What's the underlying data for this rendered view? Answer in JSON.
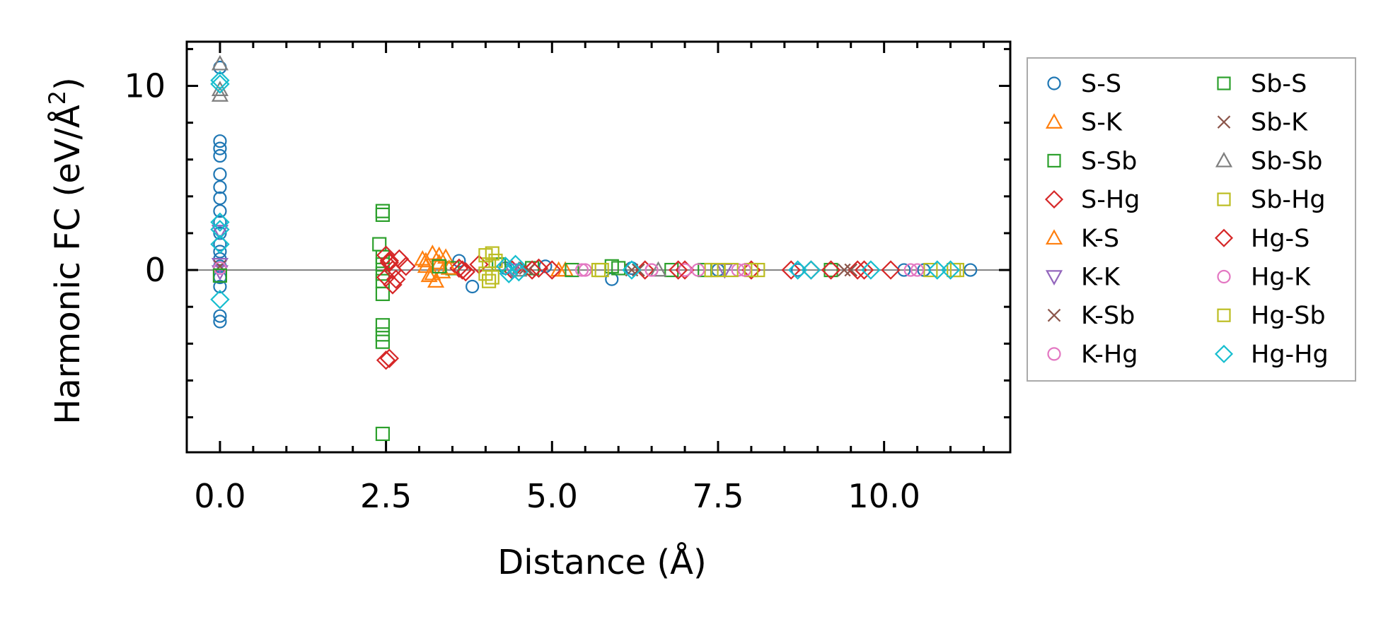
{
  "chart_data": {
    "type": "scatter",
    "title": "",
    "xlabel": "Distance (Å)",
    "ylabel": "Harmonic FC (eV/Å²)",
    "ylabel_base": "Harmonic FC (eV/Å",
    "ylabel_sup": "2",
    "ylabel_end": ")",
    "xlim": [
      -0.5,
      11.9
    ],
    "ylim": [
      -9.9,
      12.4
    ],
    "x_ticks": [
      {
        "value": 0.0,
        "label": "0.0"
      },
      {
        "value": 2.5,
        "label": "2.5"
      },
      {
        "value": 5.0,
        "label": "5.0"
      },
      {
        "value": 7.5,
        "label": "7.5"
      },
      {
        "value": 10.0,
        "label": "10.0"
      }
    ],
    "y_ticks": [
      {
        "value": 0,
        "label": "0"
      },
      {
        "value": 10,
        "label": "10"
      }
    ],
    "reference_line_y": 0,
    "legend_position": "outside-right",
    "series": [
      {
        "name": "S-S",
        "marker": "circle",
        "color": "#1f77b4",
        "filled": false,
        "points": [
          [
            0,
            11
          ],
          [
            0,
            7
          ],
          [
            0,
            6.6
          ],
          [
            0,
            6.2
          ],
          [
            0,
            5.2
          ],
          [
            0,
            4.5
          ],
          [
            0,
            3.9
          ],
          [
            0,
            3.2
          ],
          [
            0,
            2.6
          ],
          [
            0,
            2
          ],
          [
            0,
            1.4
          ],
          [
            0,
            1
          ],
          [
            0,
            0.6
          ],
          [
            0,
            0.2
          ],
          [
            0,
            -0.4
          ],
          [
            0,
            -0.9
          ],
          [
            0,
            -2.5
          ],
          [
            0,
            -2.8
          ],
          [
            3.6,
            0.5
          ],
          [
            3.8,
            -0.9
          ],
          [
            4.3,
            0.1
          ],
          [
            4.9,
            0.2
          ],
          [
            5.9,
            -0.5
          ],
          [
            6.2,
            0.1
          ],
          [
            7.5,
            0
          ],
          [
            8.7,
            0
          ],
          [
            10.3,
            0
          ],
          [
            10.6,
            0
          ],
          [
            11.3,
            0
          ]
        ]
      },
      {
        "name": "S-K",
        "marker": "triangle-up",
        "color": "#ff7f0e",
        "filled": false,
        "points": [
          [
            3.05,
            0.6
          ],
          [
            3.1,
            0.2
          ],
          [
            3.15,
            -0.3
          ],
          [
            3.2,
            0.9
          ],
          [
            3.25,
            -0.6
          ],
          [
            3.3,
            0.4
          ],
          [
            3.35,
            -0.1
          ],
          [
            3.4,
            0.7
          ],
          [
            5.1,
            0
          ]
        ]
      },
      {
        "name": "S-Sb",
        "marker": "square",
        "color": "#2ca02c",
        "filled": false,
        "points": [
          [
            2.45,
            3.2
          ],
          [
            2.45,
            3.0
          ],
          [
            2.4,
            1.4
          ],
          [
            2.45,
            0.7
          ],
          [
            2.45,
            0.3
          ],
          [
            2.45,
            -0.2
          ],
          [
            2.45,
            -0.6
          ],
          [
            2.45,
            -1.3
          ],
          [
            2.45,
            -3
          ],
          [
            2.45,
            -3.5
          ],
          [
            2.45,
            -3.9
          ],
          [
            2.45,
            -8.9
          ],
          [
            3.5,
            0.1
          ],
          [
            4.7,
            0.1
          ],
          [
            5.9,
            0.2
          ],
          [
            6.8,
            0
          ],
          [
            9.2,
            0
          ]
        ]
      },
      {
        "name": "S-Hg",
        "marker": "diamond",
        "color": "#d62728",
        "filled": false,
        "points": [
          [
            2.5,
            0.8
          ],
          [
            2.55,
            0.4
          ],
          [
            2.6,
            0
          ],
          [
            2.5,
            -0.4
          ],
          [
            2.6,
            -0.8
          ],
          [
            2.7,
            0.6
          ],
          [
            2.8,
            0.2
          ],
          [
            2.5,
            -4.9
          ],
          [
            2.55,
            -4.8
          ],
          [
            3.6,
            0.1
          ],
          [
            3.7,
            -0.1
          ],
          [
            3.9,
            0.3
          ],
          [
            4.4,
            0
          ],
          [
            4.8,
            0.1
          ],
          [
            5.0,
            0
          ],
          [
            6.4,
            0
          ],
          [
            7.0,
            0
          ],
          [
            8.0,
            0
          ],
          [
            8.9,
            0
          ],
          [
            9.2,
            0
          ],
          [
            9.6,
            0
          ],
          [
            10.1,
            0
          ]
        ]
      },
      {
        "name": "K-S",
        "marker": "triangle-up",
        "color": "#ff7f0e",
        "filled": false,
        "points": [
          [
            3.1,
            0.5
          ],
          [
            3.2,
            -0.2
          ],
          [
            3.3,
            0.8
          ],
          [
            3.45,
            0.1
          ],
          [
            5.2,
            0
          ]
        ]
      },
      {
        "name": "K-K",
        "marker": "triangle-down",
        "color": "#9467bd",
        "filled": false,
        "points": [
          [
            0,
            2.1
          ],
          [
            0,
            0.3
          ],
          [
            0,
            -0.1
          ],
          [
            4.4,
            0
          ],
          [
            7.6,
            0
          ]
        ]
      },
      {
        "name": "K-Sb",
        "marker": "x",
        "color": "#8c564b",
        "filled": false,
        "points": [
          [
            0,
            0.2
          ],
          [
            4.6,
            0.1
          ],
          [
            6.2,
            0
          ],
          [
            9.5,
            0
          ]
        ]
      },
      {
        "name": "K-Hg",
        "marker": "circle",
        "color": "#e377c2",
        "filled": false,
        "points": [
          [
            0,
            0.1
          ],
          [
            5.5,
            0
          ],
          [
            6.5,
            0
          ],
          [
            7.0,
            0
          ],
          [
            7.8,
            0
          ],
          [
            10.4,
            0
          ]
        ]
      },
      {
        "name": "Sb-S",
        "marker": "square",
        "color": "#2ca02c",
        "filled": false,
        "points": [
          [
            0,
            -0.3
          ],
          [
            3.3,
            0.2
          ],
          [
            4.2,
            0.3
          ],
          [
            5.3,
            0
          ],
          [
            6.0,
            0.1
          ],
          [
            7.3,
            0
          ]
        ]
      },
      {
        "name": "Sb-K",
        "marker": "x",
        "color": "#8c564b",
        "filled": false,
        "points": [
          [
            4.65,
            0
          ],
          [
            6.3,
            0
          ],
          [
            9.4,
            0
          ]
        ]
      },
      {
        "name": "Sb-Sb",
        "marker": "triangle-up",
        "color": "#7f7f7f",
        "filled": false,
        "points": [
          [
            0,
            11.2
          ],
          [
            0,
            9.8
          ],
          [
            0,
            9.5
          ],
          [
            4.5,
            0
          ],
          [
            6.6,
            0
          ]
        ]
      },
      {
        "name": "Sb-Hg",
        "marker": "square",
        "color": "#bcbd22",
        "filled": false,
        "points": [
          [
            4.0,
            0.8
          ],
          [
            4.05,
            0.3
          ],
          [
            4.0,
            -0.2
          ],
          [
            4.05,
            -0.6
          ],
          [
            4.15,
            0.5
          ],
          [
            5.7,
            0
          ],
          [
            7.4,
            0
          ],
          [
            7.7,
            0
          ],
          [
            8.0,
            0
          ],
          [
            10.7,
            0
          ],
          [
            11.1,
            0
          ]
        ]
      },
      {
        "name": "Hg-S",
        "marker": "diamond",
        "color": "#d62728",
        "filled": false,
        "points": [
          [
            2.55,
            0.5
          ],
          [
            2.65,
            -0.5
          ],
          [
            3.65,
            0
          ],
          [
            4.7,
            0
          ],
          [
            6.9,
            0
          ],
          [
            8.6,
            0
          ],
          [
            9.7,
            0
          ]
        ]
      },
      {
        "name": "Hg-K",
        "marker": "circle",
        "color": "#e377c2",
        "filled": false,
        "points": [
          [
            5.45,
            0
          ],
          [
            6.5,
            0
          ],
          [
            7.2,
            0
          ],
          [
            7.9,
            0
          ],
          [
            10.5,
            0
          ]
        ]
      },
      {
        "name": "Hg-Sb",
        "marker": "square",
        "color": "#bcbd22",
        "filled": false,
        "points": [
          [
            4.1,
            0.9
          ],
          [
            4.1,
            -0.4
          ],
          [
            5.75,
            0
          ],
          [
            7.5,
            0
          ],
          [
            8.1,
            0
          ],
          [
            11.05,
            0
          ]
        ]
      },
      {
        "name": "Hg-Hg",
        "marker": "diamond",
        "color": "#17becf",
        "filled": false,
        "points": [
          [
            0,
            10.3
          ],
          [
            0,
            10.1
          ],
          [
            0,
            2.6
          ],
          [
            0,
            2.2
          ],
          [
            0,
            1.4
          ],
          [
            0,
            -1.6
          ],
          [
            4.3,
            0.2
          ],
          [
            4.35,
            -0.2
          ],
          [
            4.45,
            0.3
          ],
          [
            4.5,
            -0.1
          ],
          [
            6.2,
            0
          ],
          [
            8.7,
            0
          ],
          [
            8.9,
            0
          ],
          [
            9.8,
            0
          ],
          [
            10.8,
            0
          ],
          [
            11.0,
            0
          ]
        ]
      }
    ]
  }
}
